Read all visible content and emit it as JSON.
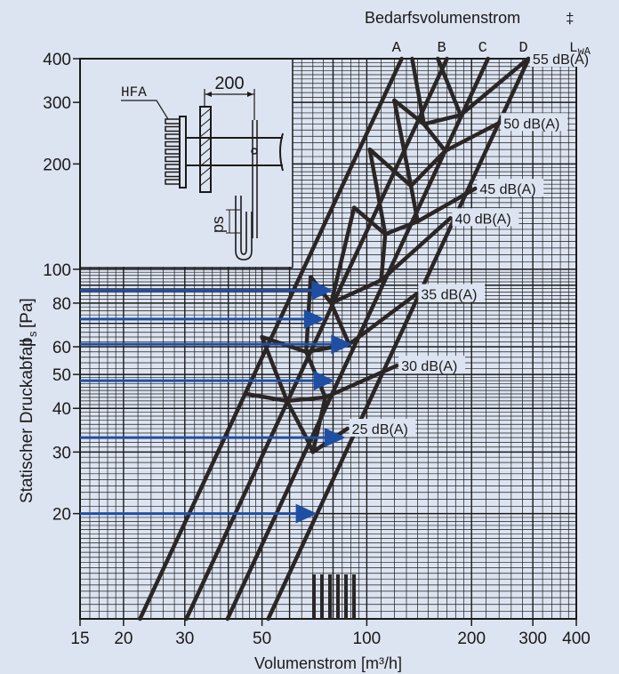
{
  "chart_data": {
    "type": "line",
    "top_label": "Bedarfsvolumenstrom",
    "top_symbol": "‡",
    "xlabel": "Volumenstrom [m³/h]",
    "ylabel": "Statischer Druckabfall",
    "ylabel_symbol": "p",
    "ylabel_sub": "s",
    "ylabel_unit": "[Pa]",
    "x_scale": "log",
    "y_scale": "log",
    "xlim": [
      15,
      400
    ],
    "ylim": [
      10,
      400
    ],
    "x_ticks": [
      15,
      20,
      30,
      50,
      100,
      200,
      300,
      400
    ],
    "y_ticks": [
      20,
      30,
      40,
      50,
      60,
      80,
      100,
      200,
      300,
      400
    ],
    "colors": {
      "curves": "#2b2626",
      "arrows": "#1f4fa3",
      "background": "#dde4f1",
      "grid": "#1a1a1a"
    },
    "series": [
      {
        "name": "A",
        "points": [
          [
            22.3,
            10
          ],
          [
            126,
            400
          ]
        ]
      },
      {
        "name": "B",
        "points": [
          [
            30.3,
            10
          ],
          [
            170,
            400
          ]
        ]
      },
      {
        "name": "C",
        "points": [
          [
            39.8,
            10
          ],
          [
            223,
            400
          ]
        ]
      },
      {
        "name": "D",
        "points": [
          [
            52.1,
            10
          ],
          [
            292,
            400
          ]
        ]
      }
    ],
    "lwa_label": "L",
    "lwa_sub": "wA",
    "sound_levels": [
      {
        "label": "25 dB(A)",
        "points": [
          [
            67,
            33
          ],
          [
            70,
            30
          ],
          [
            88,
            35
          ]
        ]
      },
      {
        "label": "30 dB(A)",
        "points": [
          [
            45,
            44
          ],
          [
            59,
            42
          ],
          [
            76,
            43
          ],
          [
            122,
            53
          ]
        ]
      },
      {
        "label": "35 dB(A)",
        "points": [
          [
            50,
            64
          ],
          [
            67,
            58
          ],
          [
            89,
            61
          ],
          [
            139,
            85
          ]
        ]
      },
      {
        "label": "40 dB(A)",
        "points": [
          [
            69,
            95
          ],
          [
            79,
            80
          ],
          [
            110,
            93
          ],
          [
            174,
            140
          ]
        ]
      },
      {
        "label": "45 dB(A)",
        "points": [
          [
            92,
            150
          ],
          [
            113,
            126
          ],
          [
            140,
            137
          ],
          [
            205,
            170
          ]
        ]
      },
      {
        "label": "50 dB(A)",
        "points": [
          [
            102,
            220
          ],
          [
            134,
            173
          ],
          [
            168,
            218
          ],
          [
            240,
            262
          ]
        ]
      },
      {
        "label": "55 dB(A)",
        "points": [
          [
            120,
            304
          ],
          [
            146,
            260
          ],
          [
            186,
            276
          ],
          [
            291,
            400
          ]
        ]
      }
    ],
    "valley_links": [
      [
        [
          67,
          33
        ],
        [
          59,
          42
        ]
      ],
      [
        [
          59,
          42
        ],
        [
          50,
          64
        ]
      ],
      [
        [
          70,
          30
        ],
        [
          76,
          43
        ]
      ],
      [
        [
          76,
          43
        ],
        [
          67,
          58
        ]
      ],
      [
        [
          67,
          58
        ],
        [
          69,
          95
        ]
      ],
      [
        [
          89,
          61
        ],
        [
          79,
          80
        ]
      ],
      [
        [
          79,
          80
        ],
        [
          92,
          150
        ]
      ],
      [
        [
          110,
          93
        ],
        [
          113,
          126
        ]
      ],
      [
        [
          113,
          126
        ],
        [
          102,
          220
        ]
      ],
      [
        [
          140,
          137
        ],
        [
          134,
          173
        ]
      ],
      [
        [
          134,
          173
        ],
        [
          120,
          304
        ]
      ],
      [
        [
          168,
          218
        ],
        [
          146,
          260
        ]
      ],
      [
        [
          146,
          260
        ],
        [
          135,
          400
        ]
      ],
      [
        [
          186,
          276
        ],
        [
          160,
          400
        ]
      ]
    ],
    "arrows": [
      {
        "y": 87,
        "x_end": 80
      },
      {
        "y": 72,
        "x_end": 76
      },
      {
        "y": 61,
        "x_end": 91
      },
      {
        "y": 48,
        "x_end": 81
      },
      {
        "y": 33,
        "x_end": 87
      },
      {
        "y": 20,
        "x_end": 72
      }
    ],
    "inset": {
      "hfa_label": "HFA",
      "dim_label": "200",
      "ps_label": "ps"
    }
  }
}
